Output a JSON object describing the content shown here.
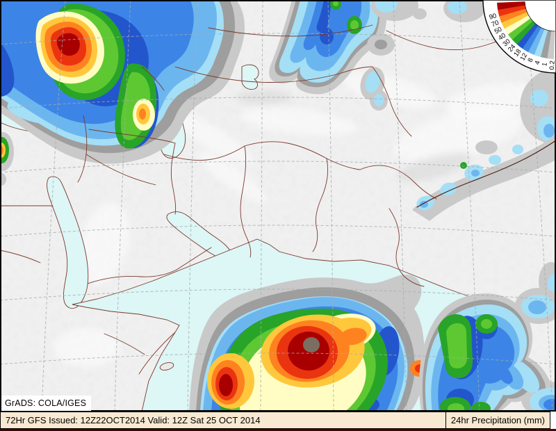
{
  "map": {
    "attribution": "GrADS: COLA/IGES",
    "footer": {
      "left": "72Hr GFS Issued: 12Z22OCT2014 Valid: 12Z Sat 25 OCT 2014",
      "right": "24hr Precipitation (mm)"
    },
    "legend": {
      "units": "mm",
      "levels": [
        "0.2",
        "1",
        "4",
        "8",
        "12",
        "18",
        "24",
        "30",
        "40",
        "50",
        "70",
        "90"
      ],
      "band_colors": [
        "#c9c9c9",
        "#9e9e9e",
        "#a4dff6",
        "#6cb6f0",
        "#3c85e6",
        "#2356cc",
        "#28a428",
        "#5ec832",
        "#fffdc4",
        "#ffc83c",
        "#ff8220",
        "#ea3410",
        "#a80000"
      ],
      "overflow_core_color": "#7a6e60"
    },
    "palette": {
      "land": "#e9e9e9",
      "ocean": "#ddf6f6",
      "border": "#7a382b",
      "grid": "#a3abab",
      "frame": "#000000",
      "bar_bg": "#f8e9d2"
    }
  }
}
